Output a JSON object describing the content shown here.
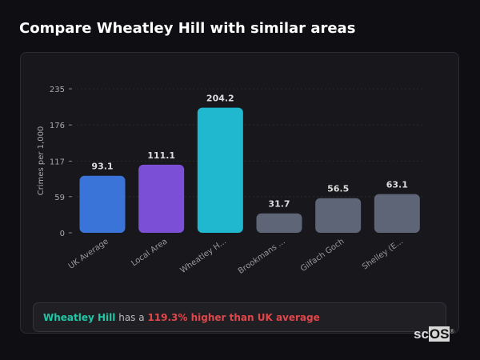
{
  "title": "Compare Wheatley Hill with similar areas",
  "chart_data": {
    "type": "bar",
    "categories": [
      "UK Average",
      "Local Area",
      "Wheatley H...",
      "Brookmans ...",
      "Gilfach Goch",
      "Shelley (E..."
    ],
    "values": [
      93.1,
      111.1,
      204.2,
      31.7,
      56.5,
      63.1
    ],
    "value_labels": [
      "93.1",
      "111.1",
      "204.2",
      "31.7",
      "56.5",
      "63.1"
    ],
    "colors": [
      "#3a74d8",
      "#7b4fd6",
      "#20b8cf",
      "#5d6577",
      "#5d6577",
      "#5d6577"
    ],
    "ylabel": "Crimes per 1,000",
    "xlabel": "",
    "ylim": [
      0,
      235
    ],
    "yticks": [
      0,
      59,
      117,
      176,
      235
    ],
    "grid": true,
    "legend": "none"
  },
  "summary": {
    "area": "Wheatley Hill",
    "connector": "has a",
    "comparison": "119.3% higher than UK average"
  },
  "logo": {
    "text_a": "sc",
    "text_b": "OS",
    "mark": "®"
  }
}
